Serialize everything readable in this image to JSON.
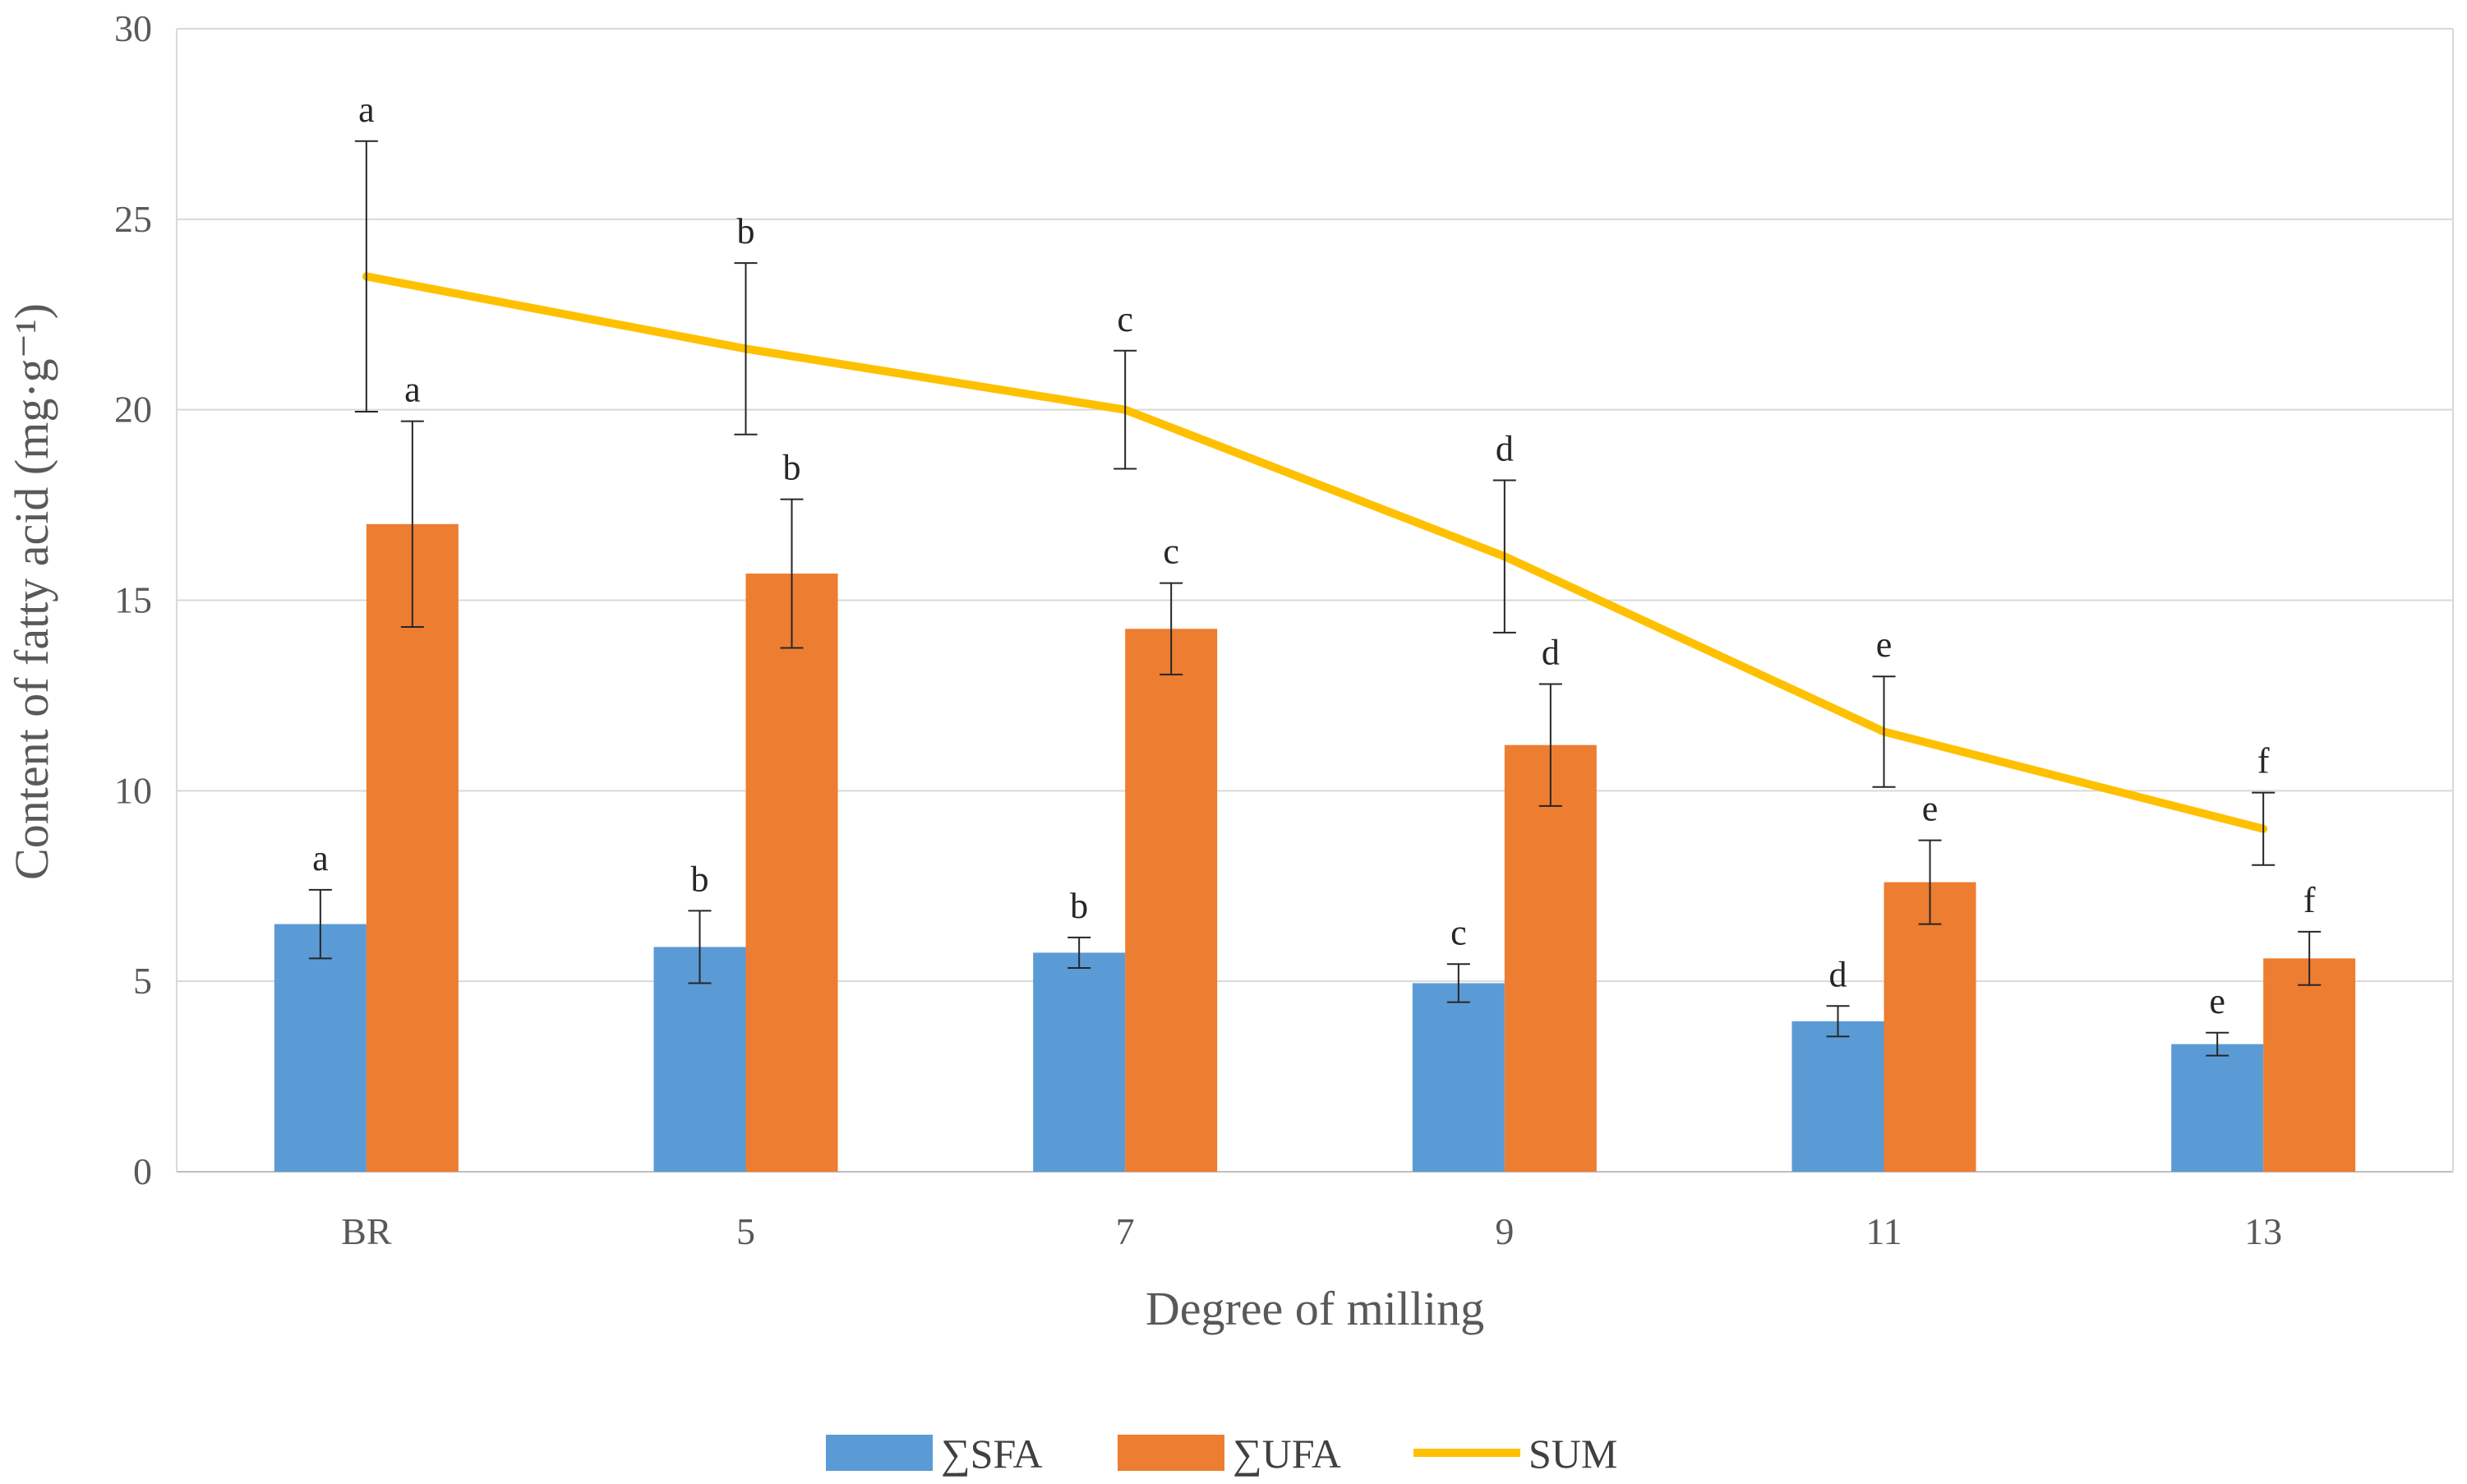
{
  "chart_data": {
    "type": "bar",
    "xlabel": "Degree of milling",
    "ylabel": "Content of fatty acid (mg·g⁻¹)",
    "ylim": [
      0,
      30
    ],
    "yticks": [
      0,
      5,
      10,
      15,
      20,
      25,
      30
    ],
    "grid": true,
    "legend_position": "bottom",
    "categories": [
      "BR",
      "5",
      "7",
      "9",
      "11",
      "13"
    ],
    "series": [
      {
        "name": "∑SFA",
        "kind": "bar",
        "color": "#5B9BD5",
        "values": [
          6.5,
          5.9,
          5.75,
          4.95,
          3.95,
          3.35
        ],
        "errors": [
          0.9,
          0.95,
          0.4,
          0.5,
          0.4,
          0.3
        ],
        "letters": [
          "a",
          "b",
          "b",
          "c",
          "d",
          "e"
        ]
      },
      {
        "name": "∑UFA",
        "kind": "bar",
        "color": "#ED7D31",
        "values": [
          17.0,
          15.7,
          14.25,
          11.2,
          7.6,
          5.6
        ],
        "errors": [
          2.7,
          1.95,
          1.2,
          1.6,
          1.1,
          0.7
        ],
        "letters": [
          "a",
          "b",
          "c",
          "d",
          "e",
          "f"
        ]
      },
      {
        "name": "SUM",
        "kind": "line",
        "color": "#FFC000",
        "values": [
          23.5,
          21.6,
          20.0,
          16.15,
          11.55,
          9.0
        ],
        "errors": [
          3.55,
          2.25,
          1.55,
          2.0,
          1.45,
          0.95
        ],
        "letters": [
          "a",
          "b",
          "c",
          "d",
          "e",
          "f"
        ]
      }
    ]
  }
}
